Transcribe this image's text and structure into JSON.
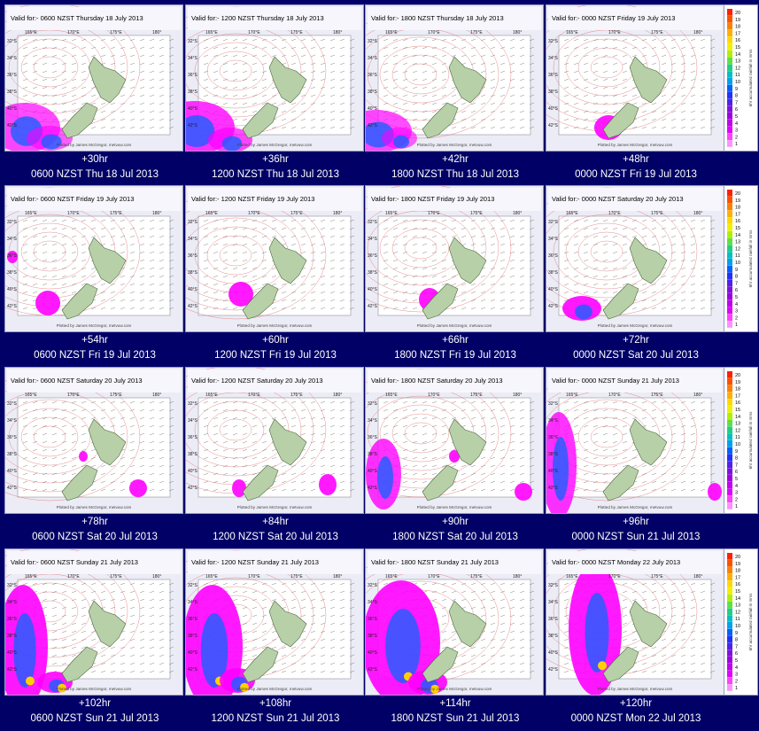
{
  "panels": [
    {
      "valid": "Valid for:- 0600 NZST Thursday 18 July 2013",
      "hour": "+30hr",
      "time": "0600 NZST Thu 18 Jul 2013"
    },
    {
      "valid": "Valid for:- 1200 NZST Thursday 18 July 2013",
      "hour": "+36hr",
      "time": "1200 NZST Thu 18 Jul 2013"
    },
    {
      "valid": "Valid for:- 1800 NZST Thursday 18 July 2013",
      "hour": "+42hr",
      "time": "1800 NZST Thu 18 Jul 2013"
    },
    {
      "valid": "Valid for:- 0000 NZST Friday 19 July 2013",
      "hour": "+48hr",
      "time": "0000 NZST Fri 19 Jul 2013"
    },
    {
      "valid": "Valid for:- 0600 NZST Friday 19 July 2013",
      "hour": "+54hr",
      "time": "0600 NZST Fri 19 Jul 2013"
    },
    {
      "valid": "Valid for:- 1200 NZST Friday 19 July 2013",
      "hour": "+60hr",
      "time": "1200 NZST Fri 19 Jul 2013"
    },
    {
      "valid": "Valid for:- 1800 NZST Friday 19 July 2013",
      "hour": "+66hr",
      "time": "1800 NZST Fri 19 Jul 2013"
    },
    {
      "valid": "Valid for:- 0000 NZST Saturday 20 July 2013",
      "hour": "+72hr",
      "time": "0000 NZST Sat 20 Jul 2013"
    },
    {
      "valid": "Valid for:- 0600 NZST Saturday 20 July 2013",
      "hour": "+78hr",
      "time": "0600 NZST Sat 20 Jul 2013"
    },
    {
      "valid": "Valid for:- 1200 NZST Saturday 20 July 2013",
      "hour": "+84hr",
      "time": "1200 NZST Sat 20 Jul 2013"
    },
    {
      "valid": "Valid for:- 1800 NZST Saturday 20 July 2013",
      "hour": "+90hr",
      "time": "1800 NZST Sat 20 Jul 2013"
    },
    {
      "valid": "Valid for:- 0000 NZST Sunday 21 July 2013",
      "hour": "+96hr",
      "time": "0000 NZST Sun 21 Jul 2013"
    },
    {
      "valid": "Valid for:- 0600 NZST Sunday 21 July 2013",
      "hour": "+102hr",
      "time": "0600 NZST Sun 21 Jul 2013"
    },
    {
      "valid": "Valid for:- 1200 NZST Sunday 21 July 2013",
      "hour": "+108hr",
      "time": "1200 NZST Sun 21 Jul 2013"
    },
    {
      "valid": "Valid for:- 1800 NZST Sunday 21 July 2013",
      "hour": "+114hr",
      "time": "1800 NZST Sun 21 Jul 2013"
    },
    {
      "valid": "Valid for:- 0000 NZST Monday 22 July 2013",
      "hour": "+120hr",
      "time": "0000 NZST Mon 22 Jul 2013"
    }
  ],
  "map_labels": {
    "lon": [
      "165°E",
      "170°E",
      "175°E",
      "180°"
    ],
    "lat": [
      "32°S",
      "34°S",
      "36°S",
      "38°S",
      "40°S",
      "42°S"
    ],
    "credit": "Plotted by James McGregor, metvuw.com"
  },
  "legend": {
    "values": [
      "20",
      "19",
      "18",
      "17",
      "16",
      "15",
      "14",
      "13",
      "12",
      "11",
      "10",
      "9",
      "8",
      "7",
      "6",
      "5",
      "4",
      "3",
      "2",
      "1"
    ],
    "axis_label": "6hr accumulated rainfall in mms"
  },
  "colors": {
    "page_background": "#000066",
    "rain_light": "#ff00ff",
    "rain_heavy": "#1a60ff",
    "rain_peak": "#ffd000",
    "land": "#b8d0a8",
    "isobar": "#e07070"
  }
}
